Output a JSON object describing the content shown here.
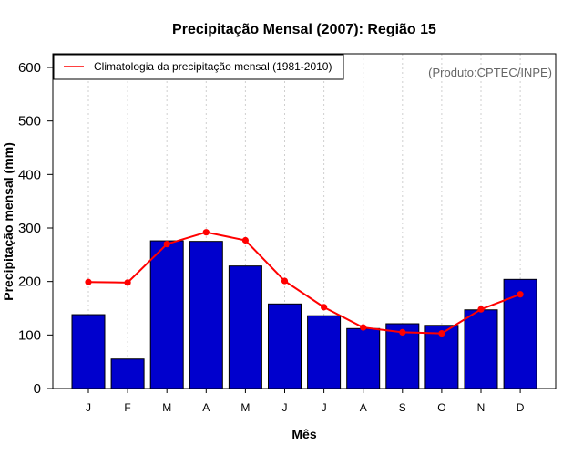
{
  "chart_data": {
    "type": "bar",
    "title": "Precipitação Mensal (2007): Região 15",
    "xlabel": "Mês",
    "ylabel": "Precipitação mensal (mm)",
    "ylim": [
      0,
      600
    ],
    "yticks": [
      0,
      100,
      200,
      300,
      400,
      500,
      600
    ],
    "categories": [
      "J",
      "F",
      "M",
      "A",
      "M",
      "J",
      "J",
      "A",
      "S",
      "O",
      "N",
      "D"
    ],
    "series": [
      {
        "name": "Precipitação mensal (2007)",
        "type": "bar",
        "color": "#0000cd",
        "values": [
          138,
          55,
          276,
          275,
          229,
          158,
          136,
          112,
          121,
          118,
          147,
          204
        ]
      },
      {
        "name": "Climatologia da precipitação mensal (1981-2010)",
        "type": "line",
        "color": "#ff0000",
        "values": [
          199,
          198,
          270,
          292,
          277,
          201,
          152,
          114,
          105,
          103,
          148,
          176
        ]
      }
    ],
    "legend": {
      "position": "top-left",
      "entries": [
        "Climatologia da precipitação mensal (1981-2010)"
      ]
    },
    "annotation": "(Produto:CPTEC/INPE)",
    "grid": "vertical-dotted"
  }
}
